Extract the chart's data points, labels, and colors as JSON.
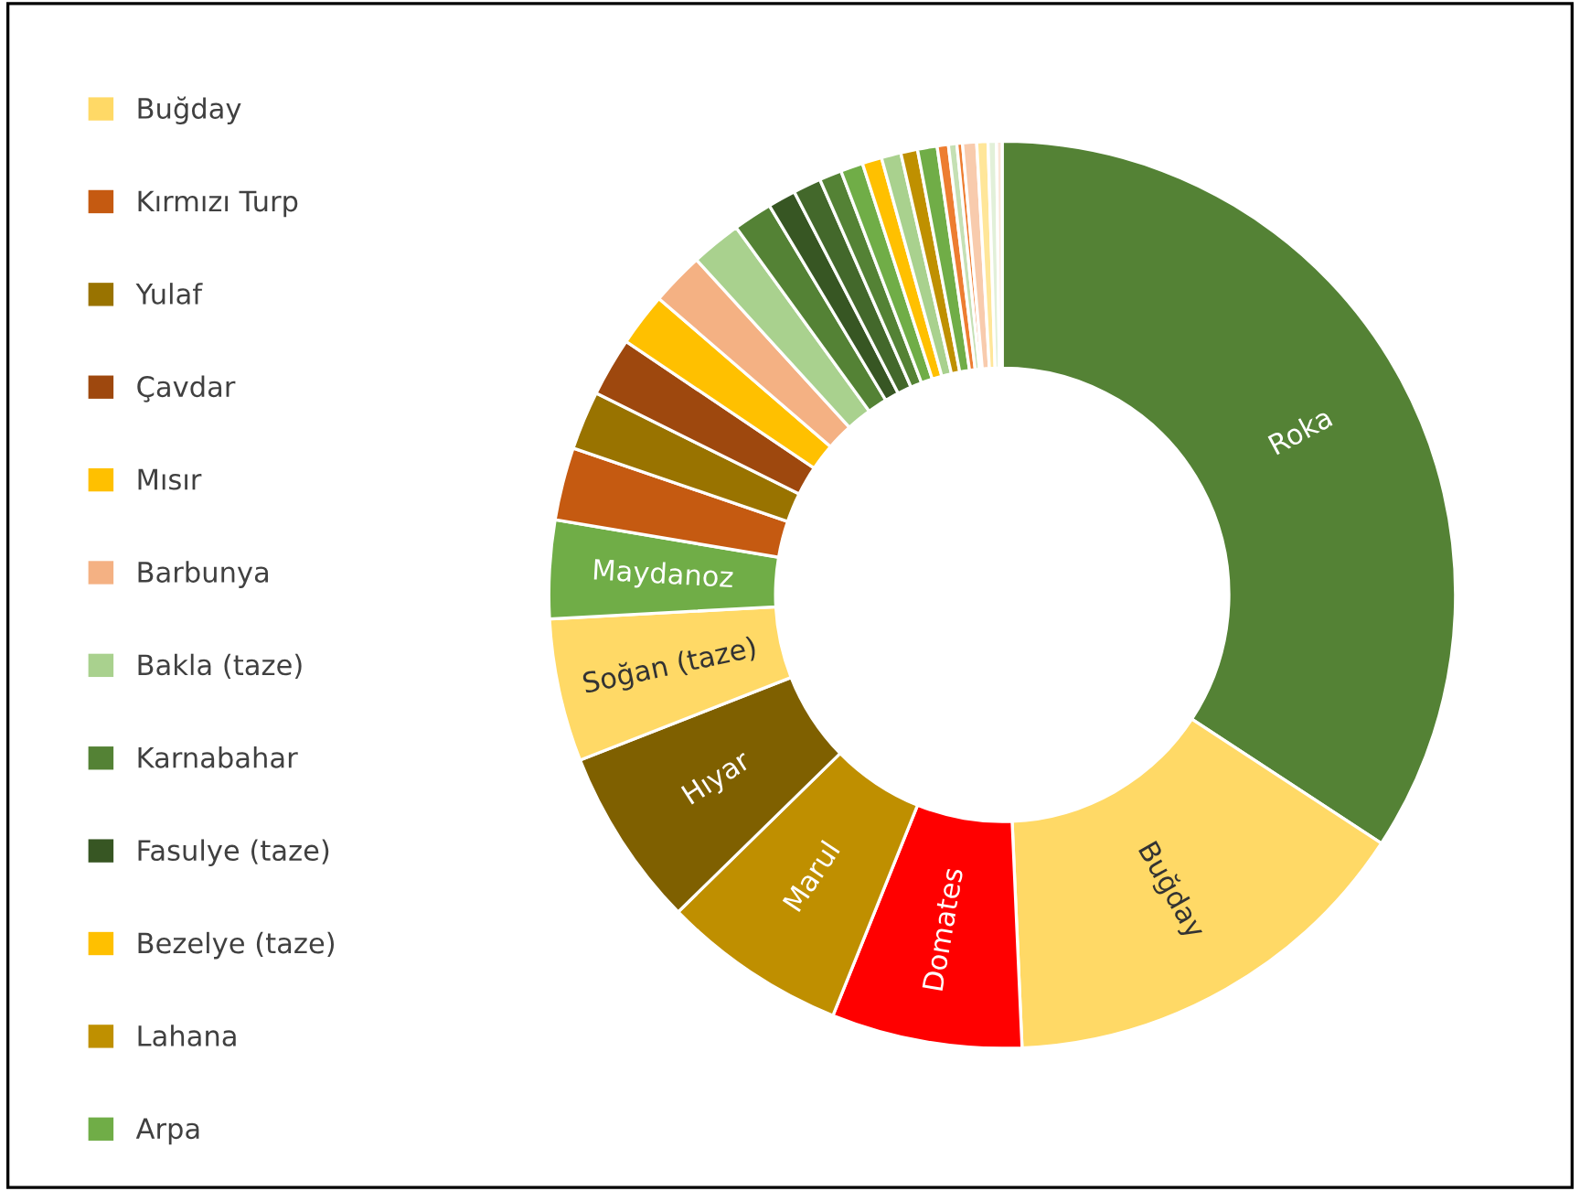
{
  "chart_data": {
    "type": "donut",
    "categories": [
      null,
      "Buğday",
      null,
      null,
      null,
      null,
      null,
      "Kırmızı Turp",
      "Yulaf",
      "Çavdar",
      "Mısır",
      "Barbunya",
      "Bakla (taze)",
      "Karnabahar",
      "Fasulye (taze)",
      null,
      null,
      null,
      "Bezelye (taze)",
      null,
      "Lahana",
      "Arpa",
      null,
      null,
      null,
      null,
      null,
      null,
      null
    ],
    "values": [
      34.3,
      15.1,
      6.8,
      6.6,
      6.4,
      5.1,
      3.5,
      2.6,
      2.1,
      2.1,
      1.9,
      1.9,
      1.8,
      1.4,
      1.0,
      1.0,
      0.8,
      0.8,
      0.7,
      0.7,
      0.6,
      0.7,
      0.4,
      0.3,
      0.2,
      0.5,
      0.4,
      0.3,
      0.2
    ],
    "value_labels": [
      "Roka",
      "Buğday",
      "Domates",
      "Marul",
      "Hıyar",
      "Soğan (taze)",
      "Maydanoz",
      null,
      null,
      null,
      null,
      null,
      null,
      null,
      null,
      null,
      null,
      null,
      null,
      null,
      null,
      null,
      null,
      null,
      null,
      null,
      null,
      null,
      null
    ],
    "colors": [
      "#548235",
      "#ffd966",
      "#ff0000",
      "#bf8f00",
      "#7f6000",
      "#ffd966",
      "#70ad47",
      "#c55a11",
      "#997300",
      "#9e480e",
      "#ffc000",
      "#f4b183",
      "#a9d18e",
      "#548235",
      "#375623",
      "#43682b",
      "#548235",
      "#70ad47",
      "#ffc000",
      "#a9d18e",
      "#bf9000",
      "#70ad47",
      "#ed7d31",
      "#c5e0b4",
      "#ed7d31",
      "#f8cbad",
      "#ffe699",
      "#e2f0d9",
      "#fbe5d6"
    ],
    "legend": "left"
  }
}
